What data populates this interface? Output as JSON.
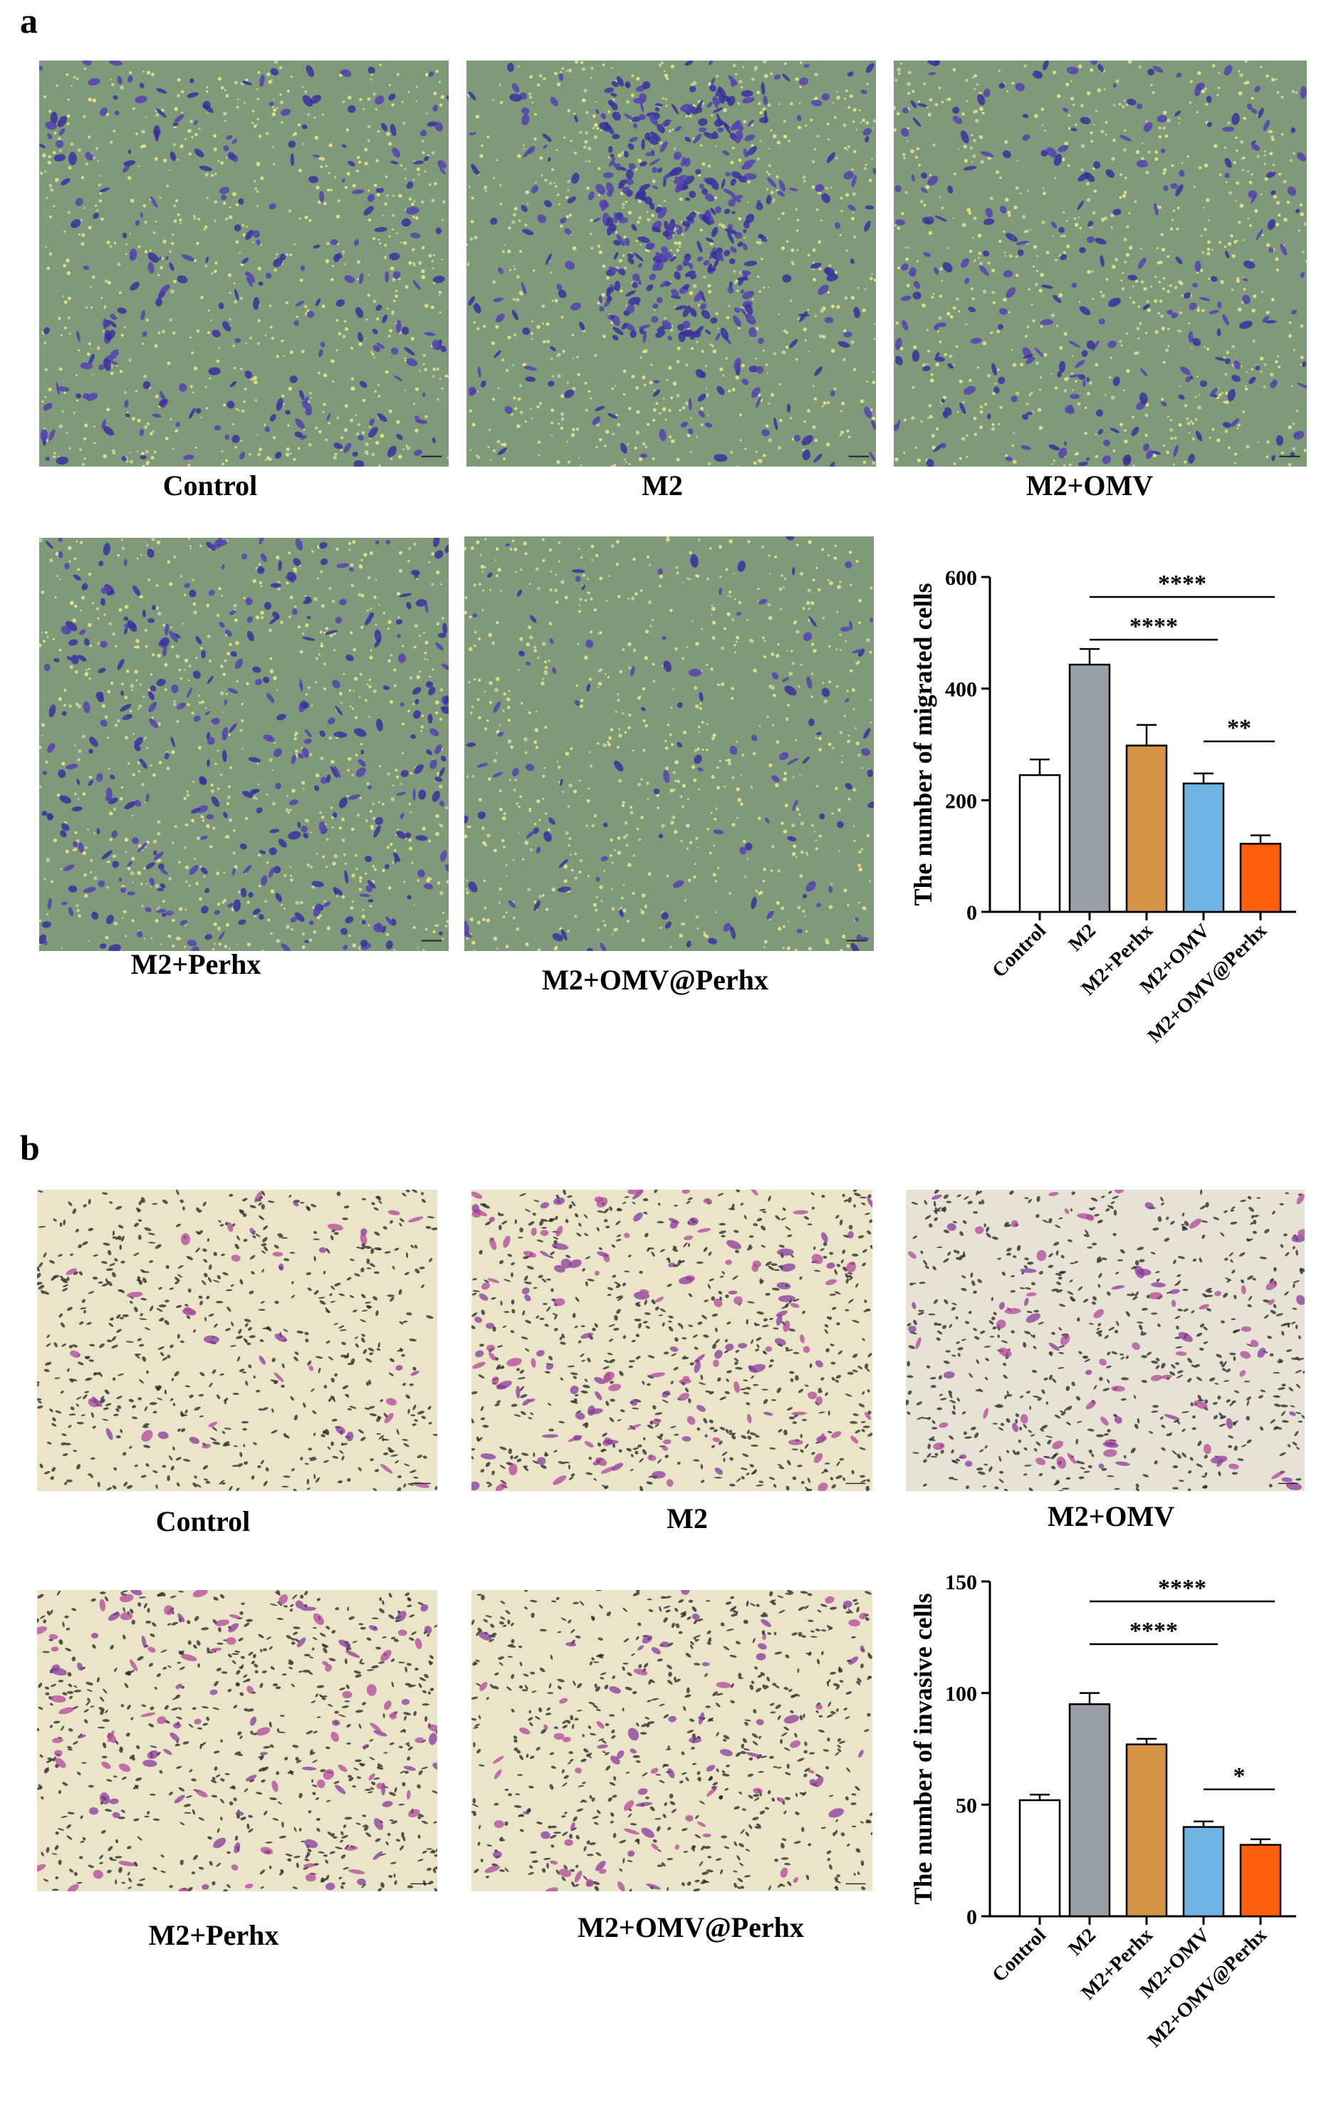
{
  "panels": {
    "a": {
      "letter": "a",
      "images": [
        {
          "label": "Control",
          "stain": "crystal-violet-blue",
          "density": "medium"
        },
        {
          "label": "M2",
          "stain": "crystal-violet-blue",
          "density": "high"
        },
        {
          "label": "M2+OMV",
          "stain": "crystal-violet-blue",
          "density": "medium"
        },
        {
          "label": "M2+Perhx",
          "stain": "crystal-violet-blue",
          "density": "medium-high"
        },
        {
          "label": "M2+OMV@Perhx",
          "stain": "crystal-violet-blue",
          "density": "low"
        }
      ]
    },
    "b": {
      "letter": "b",
      "images": [
        {
          "label": "Control",
          "stain": "violet-pink",
          "density": "low"
        },
        {
          "label": "M2",
          "stain": "violet-pink",
          "density": "high"
        },
        {
          "label": "M2+OMV",
          "stain": "violet-pink",
          "density": "medium"
        },
        {
          "label": "M2+Perhx",
          "stain": "violet-pink",
          "density": "medium-high"
        },
        {
          "label": "M2+OMV@Perhx",
          "stain": "violet-pink",
          "density": "medium"
        }
      ]
    }
  },
  "chart_data": [
    {
      "type": "bar",
      "ylabel": "The number of migrated cells",
      "categories": [
        "Control",
        "M2",
        "M2+Perhx",
        "M2+OMV",
        "M2+OMV@Perhx"
      ],
      "values": [
        245,
        443,
        298,
        230,
        122
      ],
      "errors": [
        28,
        28,
        37,
        18,
        15
      ],
      "colors": [
        "#ffffff",
        "#9a9fa6",
        "#d69245",
        "#6fb5e4",
        "#ff5f0a"
      ],
      "ylim": [
        0,
        600
      ],
      "yticks": [
        0,
        200,
        400,
        600
      ],
      "significance": [
        {
          "from": 1,
          "to": 4,
          "label": "****"
        },
        {
          "from": 1,
          "to": 3,
          "label": "****"
        },
        {
          "from": 3,
          "to": 4,
          "label": "**"
        }
      ]
    },
    {
      "type": "bar",
      "ylabel": "The number of invasive cells",
      "categories": [
        "Control",
        "M2",
        "M2+Perhx",
        "M2+OMV",
        "M2+OMV@Perhx"
      ],
      "values": [
        52,
        95,
        77,
        40,
        32
      ],
      "errors": [
        2.5,
        5,
        2.5,
        2.5,
        2.5
      ],
      "colors": [
        "#ffffff",
        "#9a9fa6",
        "#d69245",
        "#6fb5e4",
        "#ff5f0a"
      ],
      "ylim": [
        0,
        150
      ],
      "yticks": [
        0,
        50,
        100,
        150
      ],
      "significance": [
        {
          "from": 1,
          "to": 4,
          "label": "****"
        },
        {
          "from": 1,
          "to": 3,
          "label": "****"
        },
        {
          "from": 3,
          "to": 4,
          "label": "*"
        }
      ]
    }
  ]
}
